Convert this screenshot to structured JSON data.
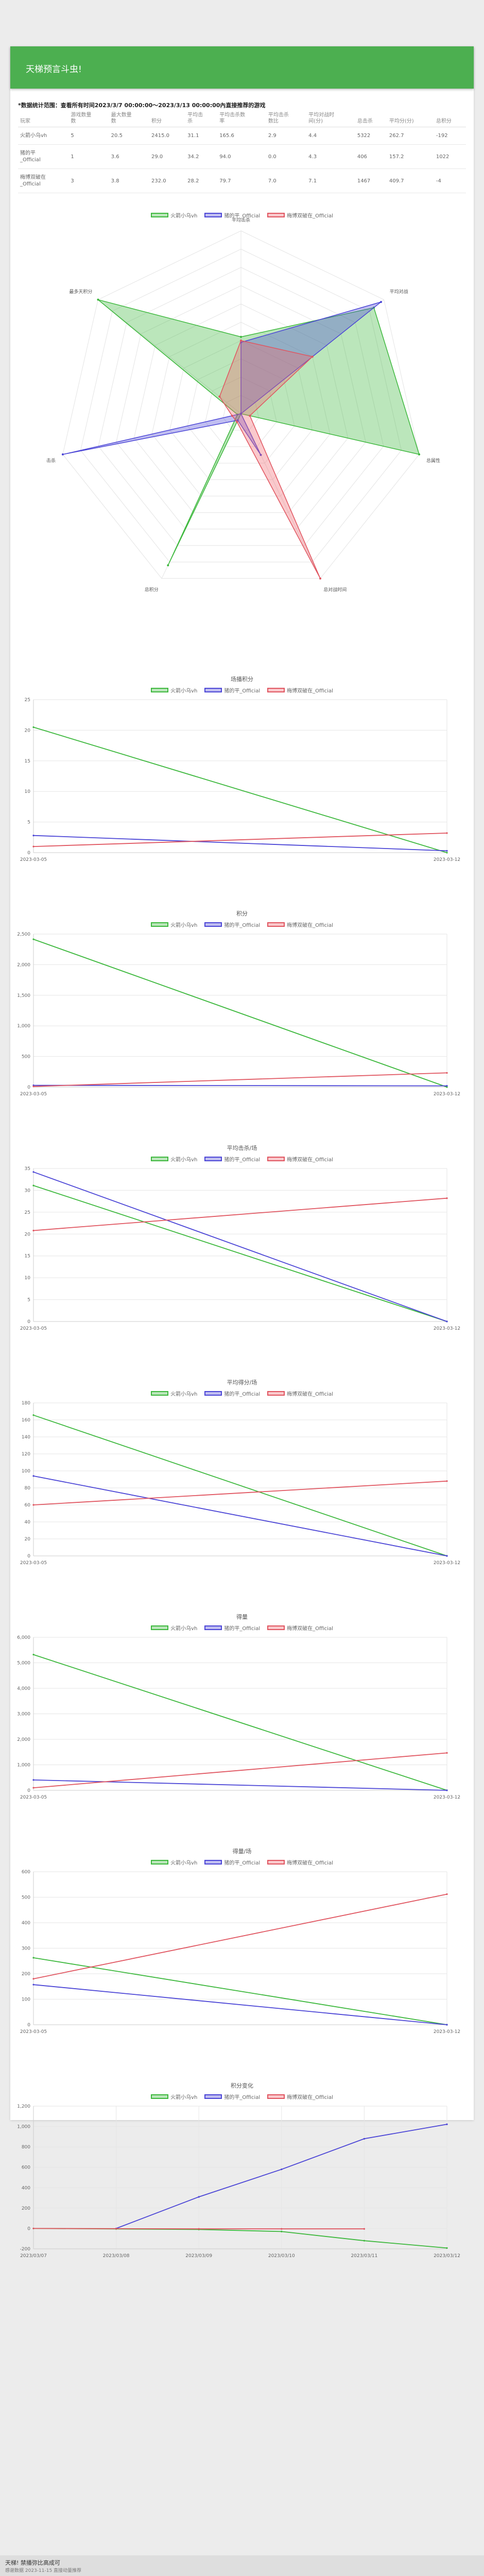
{
  "header": {
    "title": "天梯预言斗虫!"
  },
  "note": {
    "text": "*数据统计范围：查看所有时间2023/3/7 00:00:00～2023/3/13 00:00:00內直接推荐的游戏"
  },
  "table": {
    "columns": [
      "玩家",
      "游戏数量\n数",
      "最大数量\n数",
      "积分",
      "平均击\n杀",
      "平均击杀数\n率",
      "平均击杀\n数比",
      "平均对战时\n间(分)",
      "总击杀",
      "平均分(分)",
      "总积分"
    ],
    "rows": [
      [
        "火箭小乌vh",
        "5",
        "20.5",
        "2415.0",
        "31.1",
        "165.6",
        "2.9",
        "4.4",
        "5322",
        "262.7",
        "-192"
      ],
      [
        "猪的平\n_Official",
        "1",
        "3.6",
        "29.0",
        "34.2",
        "94.0",
        "0.0",
        "4.3",
        "406",
        "157.2",
        "1022"
      ],
      [
        "梅博双破在\n_Official",
        "3",
        "3.8",
        "232.0",
        "28.2",
        "79.7",
        "7.0",
        "7.1",
        "1467",
        "409.7",
        "-4"
      ]
    ]
  },
  "legend": {
    "series": [
      {
        "name": "火箭小乌vh",
        "stroke": "#3db83d",
        "fill": "rgba(61,184,61,0.35)"
      },
      {
        "name": "猪的平_Official",
        "stroke": "#4b45d6",
        "fill": "rgba(75,69,214,0.35)"
      },
      {
        "name": "梅博双破在_Official",
        "stroke": "#e05560",
        "fill": "rgba(240,100,110,0.35)"
      }
    ]
  },
  "radar": {
    "axes": [
      "平均击杀",
      "平均对战",
      "总属性",
      "总对战时间",
      "总积分",
      "击杀",
      "最多天积分"
    ]
  },
  "line_charts": [
    {
      "id": "c1",
      "title": "场播积分",
      "x": [
        "2023-03-05",
        "2023-03-12"
      ],
      "ylim": [
        0,
        25
      ],
      "yticks": [
        "0",
        "5",
        "10",
        "15",
        "20",
        "25"
      ]
    },
    {
      "id": "c2",
      "title": "积分",
      "x": [
        "2023-03-05",
        "2023-03-12"
      ],
      "ylim": [
        0,
        2500
      ],
      "yticks": [
        "0",
        "500",
        "1,000",
        "1,500",
        "2,000",
        "2,500"
      ]
    },
    {
      "id": "c3",
      "title": "平均击杀/场",
      "x": [
        "2023-03-05",
        "2023-03-12"
      ],
      "ylim": [
        0,
        35
      ],
      "yticks": [
        "0",
        "5",
        "10",
        "15",
        "20",
        "25",
        "30",
        "35"
      ]
    },
    {
      "id": "c4",
      "title": "平均得分/场",
      "x": [
        "2023-03-05",
        "2023-03-12"
      ],
      "ylim": [
        0,
        180
      ],
      "yticks": [
        "0",
        "20",
        "40",
        "60",
        "80",
        "100",
        "120",
        "140",
        "160",
        "180"
      ]
    },
    {
      "id": "c5",
      "title": "得量",
      "x": [
        "2023-03-05",
        "2023-03-12"
      ],
      "ylim": [
        0,
        6000
      ],
      "yticks": [
        "0",
        "1,000",
        "2,000",
        "3,000",
        "4,000",
        "5,000",
        "6,000"
      ]
    },
    {
      "id": "c6",
      "title": "得量/场",
      "x": [
        "2023-03-05",
        "2023-03-12"
      ],
      "ylim": [
        0,
        600
      ],
      "yticks": [
        "0",
        "100",
        "200",
        "300",
        "400",
        "500",
        "600"
      ]
    },
    {
      "id": "c7",
      "title": "积分变化",
      "x": [
        "2023/03/07",
        "2023/03/08",
        "2023/03/09",
        "2023/03/10",
        "2023/03/11",
        "2023/03/12"
      ],
      "ylim": [
        -200,
        1200
      ],
      "yticks": [
        "-200",
        "0",
        "200",
        "400",
        "600",
        "800",
        "1,000",
        "1,200"
      ]
    }
  ],
  "chart_data": [
    {
      "type": "radar",
      "axes": [
        "平均击杀",
        "平均对战",
        "总属性",
        "总对战时间",
        "总积分",
        "击杀",
        "最多天积分"
      ],
      "range": [
        0,
        1
      ],
      "series": [
        {
          "name": "火箭小乌vh",
          "values": [
            0.42,
            0.93,
            1.0,
            0.0,
            0.92,
            0.02,
            1.0
          ]
        },
        {
          "name": "猪的平_Official",
          "values": [
            0.39,
            0.98,
            0.0,
            0.25,
            0.04,
            1.0,
            0.0
          ]
        },
        {
          "name": "梅博双破在_Official",
          "values": [
            0.4,
            0.5,
            0.05,
            1.0,
            0.05,
            0.05,
            0.15
          ]
        }
      ]
    },
    {
      "type": "line",
      "title": "场播积分",
      "x": [
        "2023-03-05",
        "2023-03-12"
      ],
      "ylim": [
        0,
        25
      ],
      "series": [
        {
          "name": "火箭小乌vh",
          "values": [
            20.5,
            0
          ]
        },
        {
          "name": "猪的平_Official",
          "values": [
            2.8,
            0.3
          ]
        },
        {
          "name": "梅博双破在_Official",
          "values": [
            1.0,
            3.2
          ]
        }
      ]
    },
    {
      "type": "line",
      "title": "积分",
      "x": [
        "2023-03-05",
        "2023-03-12"
      ],
      "ylim": [
        0,
        2500
      ],
      "series": [
        {
          "name": "火箭小乌vh",
          "values": [
            2415,
            0
          ]
        },
        {
          "name": "猪的平_Official",
          "values": [
            29,
            20
          ]
        },
        {
          "name": "梅博双破在_Official",
          "values": [
            10,
            232
          ]
        }
      ]
    },
    {
      "type": "line",
      "title": "平均击杀/场",
      "x": [
        "2023-03-05",
        "2023-03-12"
      ],
      "ylim": [
        0,
        35
      ],
      "series": [
        {
          "name": "火箭小乌vh",
          "values": [
            31.1,
            0
          ]
        },
        {
          "name": "猪的平_Official",
          "values": [
            34.2,
            0
          ]
        },
        {
          "name": "梅博双破在_Official",
          "values": [
            20.8,
            28.2
          ]
        }
      ]
    },
    {
      "type": "line",
      "title": "平均得分/场",
      "x": [
        "2023-03-05",
        "2023-03-12"
      ],
      "ylim": [
        0,
        180
      ],
      "series": [
        {
          "name": "火箭小乌vh",
          "values": [
            165.6,
            0
          ]
        },
        {
          "name": "猪的平_Official",
          "values": [
            94,
            0
          ]
        },
        {
          "name": "梅博双破在_Official",
          "values": [
            60,
            88
          ]
        }
      ]
    },
    {
      "type": "line",
      "title": "得量",
      "x": [
        "2023-03-05",
        "2023-03-12"
      ],
      "ylim": [
        0,
        6000
      ],
      "series": [
        {
          "name": "火箭小乌vh",
          "values": [
            5322,
            0
          ]
        },
        {
          "name": "猪的平_Official",
          "values": [
            406,
            0
          ]
        },
        {
          "name": "梅博双破在_Official",
          "values": [
            100,
            1467
          ]
        }
      ]
    },
    {
      "type": "line",
      "title": "得量/场",
      "x": [
        "2023-03-05",
        "2023-03-12"
      ],
      "ylim": [
        0,
        600
      ],
      "series": [
        {
          "name": "火箭小乌vh",
          "values": [
            262.7,
            0
          ]
        },
        {
          "name": "猪的平_Official",
          "values": [
            157.2,
            0
          ]
        },
        {
          "name": "梅博双破在_Official",
          "values": [
            180,
            512
          ]
        }
      ]
    },
    {
      "type": "line",
      "title": "积分变化",
      "x": [
        "2023/03/07",
        "2023/03/08",
        "2023/03/09",
        "2023/03/10",
        "2023/03/11",
        "2023/03/12"
      ],
      "ylim": [
        -200,
        1200
      ],
      "series": [
        {
          "name": "火箭小乌vh",
          "values": [
            0,
            -5,
            -10,
            -30,
            -120,
            -192
          ]
        },
        {
          "name": "猪的平_Official",
          "values": [
            null,
            0,
            310,
            580,
            880,
            1022
          ]
        },
        {
          "name": "梅博双破在_Official",
          "values": [
            0,
            -2,
            -4,
            -4,
            -4,
            null
          ]
        }
      ]
    }
  ],
  "footer": {
    "line1": "天梯! 禁播弥比高成可",
    "line2": "感谢数据 2023-11-15 直接动量推荐"
  }
}
